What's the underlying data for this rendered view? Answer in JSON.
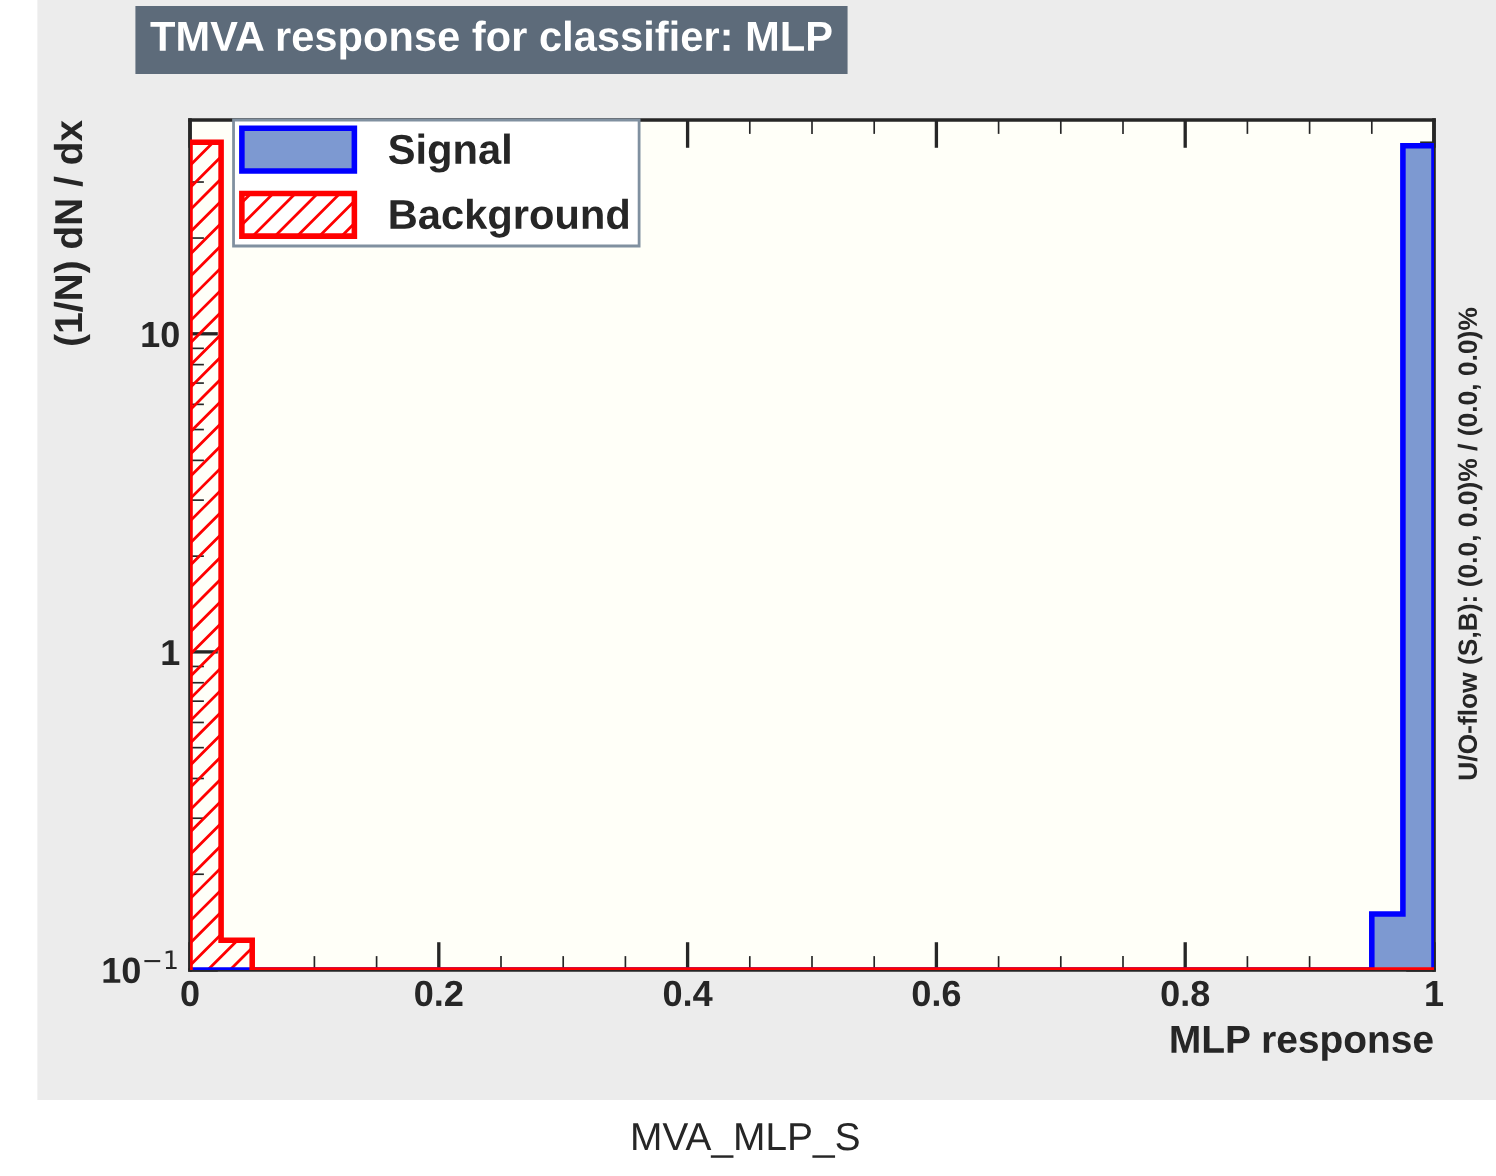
{
  "chart_data": {
    "type": "histogram",
    "title": "TMVA response for classifier: MLP",
    "xlabel": "MLP response",
    "ylabel": "(1/N) dN / dx",
    "bins": [
      0,
      0.025,
      0.05,
      0.075,
      0.1,
      0.125,
      0.15,
      0.175,
      0.2,
      0.225,
      0.25,
      0.275,
      0.3,
      0.325,
      0.35,
      0.375,
      0.4,
      0.425,
      0.45,
      0.475,
      0.5,
      0.525,
      0.55,
      0.575,
      0.6,
      0.625,
      0.65,
      0.675,
      0.7,
      0.725,
      0.75,
      0.775,
      0.8,
      0.825,
      0.85,
      0.875,
      0.9,
      0.925,
      0.95,
      0.975,
      1
    ],
    "series": [
      {
        "name": "Signal",
        "color": "#7d99d1",
        "values": [
          null,
          null,
          null,
          null,
          null,
          null,
          null,
          null,
          null,
          null,
          null,
          null,
          null,
          null,
          null,
          null,
          null,
          null,
          null,
          null,
          null,
          null,
          null,
          null,
          null,
          null,
          null,
          null,
          null,
          null,
          null,
          null,
          null,
          null,
          null,
          null,
          null,
          null,
          0.15,
          39
        ]
      },
      {
        "name": "Background",
        "color": "#ff0000",
        "values": [
          40,
          0.124,
          null,
          null,
          null,
          null,
          null,
          null,
          null,
          null,
          null,
          null,
          null,
          null,
          null,
          null,
          null,
          null,
          null,
          null,
          null,
          null,
          null,
          null,
          null,
          null,
          null,
          null,
          null,
          null,
          null,
          null,
          null,
          null,
          null,
          null,
          null,
          null,
          null,
          null
        ]
      }
    ],
    "log": "y",
    "xlim": [
      0,
      1
    ],
    "ylim": [
      0.1,
      47
    ],
    "xticks": [
      0,
      0.2,
      0.4,
      0.6,
      0.8,
      1
    ],
    "yticks": [
      {
        "value": 0.1,
        "label": "10$^{−1}$"
      },
      1,
      10
    ],
    "grid": false,
    "legend": "top left",
    "annotations": [
      "U/O-flow (S,B): (0.0, 0.0)% / (0.0, 0.0)%",
      "MVA_MLP_S"
    ]
  }
}
